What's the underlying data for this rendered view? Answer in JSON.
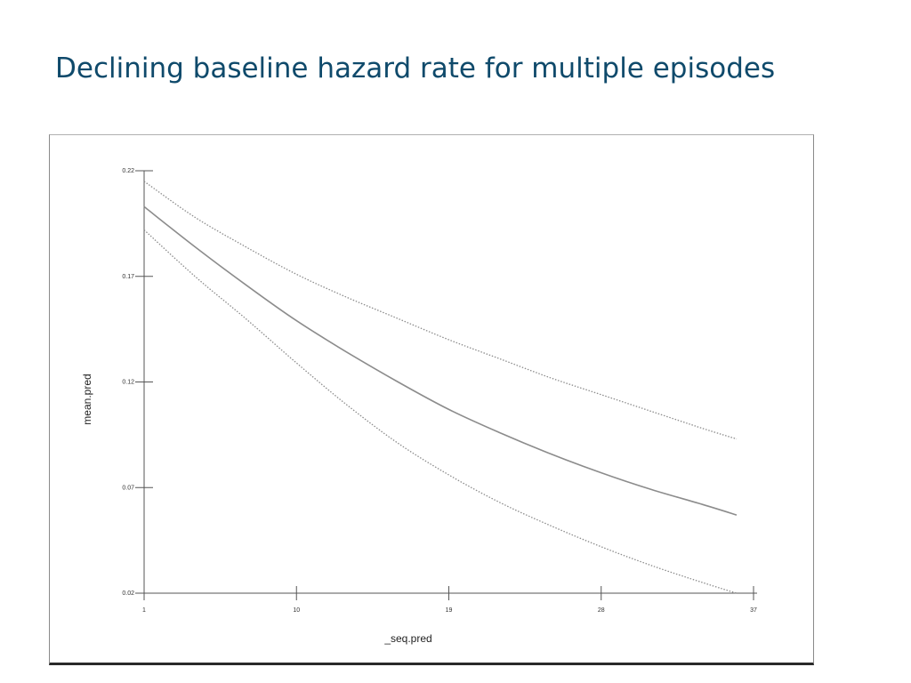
{
  "slide": {
    "title": "Declining baseline hazard rate for multiple episodes"
  },
  "chart_data": {
    "type": "line",
    "title": "",
    "xlabel": "_seq.pred",
    "ylabel": "mean.pred",
    "xlim": [
      1,
      37
    ],
    "ylim": [
      0.02,
      0.22
    ],
    "xticks": [
      1,
      10,
      19,
      28,
      37
    ],
    "yticks": [
      0.02,
      0.07,
      0.12,
      0.17,
      0.22
    ],
    "x": [
      1,
      4,
      7,
      10,
      13,
      16,
      19,
      22,
      25,
      28,
      31,
      34,
      36
    ],
    "series": [
      {
        "style": "solid",
        "values": [
          0.203,
          0.184,
          0.166,
          0.149,
          0.134,
          0.12,
          0.107,
          0.096,
          0.086,
          0.077,
          0.069,
          0.062,
          0.057
        ]
      },
      {
        "style": "dotted",
        "values": [
          0.215,
          0.198,
          0.184,
          0.171,
          0.16,
          0.15,
          0.14,
          0.131,
          0.122,
          0.114,
          0.106,
          0.098,
          0.093
        ]
      },
      {
        "style": "dotted",
        "values": [
          0.192,
          0.17,
          0.15,
          0.129,
          0.109,
          0.091,
          0.076,
          0.063,
          0.052,
          0.042,
          0.033,
          0.025,
          0.02
        ]
      }
    ],
    "colors": {
      "line": "#8c8c8c",
      "axis": "#555555"
    },
    "grid": false,
    "legend": "none"
  }
}
